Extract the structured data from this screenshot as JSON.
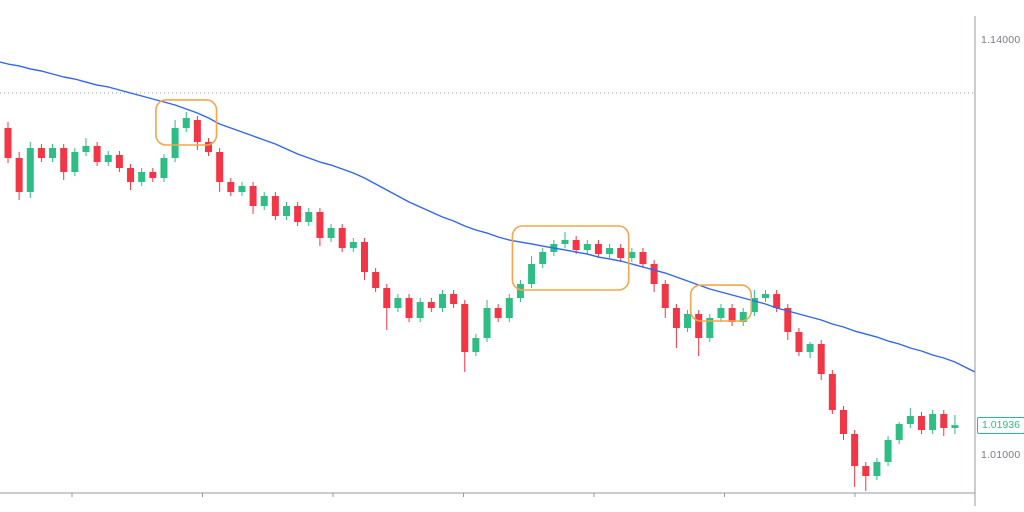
{
  "chart_data": {
    "type": "candlestick",
    "title": "",
    "y_axis": {
      "ylim": [
        0.9981,
        1.15253
      ],
      "labels": [
        {
          "text": "1.14000",
          "value": 1.14
        },
        {
          "text": "1.01000",
          "value": 1.01
        }
      ],
      "current_price": {
        "text": "1.01936",
        "value": 1.01936
      }
    },
    "x_axis": {
      "labels": [],
      "ticks_visible": true
    },
    "levels": {
      "dotted_line_price": 1.1234
    },
    "series": {
      "candles_ohlc": [
        [
          1.11243,
          1.11431,
          1.10147,
          1.10304
        ],
        [
          1.10304,
          1.10492,
          1.08988,
          1.09239
        ],
        [
          1.09239,
          1.10805,
          1.09051,
          1.10617
        ],
        [
          1.10617,
          1.10743,
          1.10178,
          1.10304
        ],
        [
          1.10304,
          1.10743,
          1.10178,
          1.10617
        ],
        [
          1.10617,
          1.10743,
          1.09615,
          1.09865
        ],
        [
          1.09865,
          1.10617,
          1.0974,
          1.10492
        ],
        [
          1.10492,
          1.1093,
          1.10367,
          1.1068
        ],
        [
          1.1068,
          1.10805,
          1.10053,
          1.10178
        ],
        [
          1.10178,
          1.10523,
          1.10053,
          1.10398
        ],
        [
          1.10398,
          1.10523,
          1.09865,
          1.0999
        ],
        [
          1.0999,
          1.10116,
          1.09301,
          1.09552
        ],
        [
          1.09552,
          1.0999,
          1.09427,
          1.09865
        ],
        [
          1.09865,
          1.0999,
          1.09552,
          1.09677
        ],
        [
          1.09677,
          1.10429,
          1.09552,
          1.10304
        ],
        [
          1.10304,
          1.11494,
          1.10178,
          1.11243
        ],
        [
          1.11243,
          1.11745,
          1.11118,
          1.11556
        ],
        [
          1.11494,
          1.1162,
          1.10554,
          1.10805
        ],
        [
          1.10805,
          1.1093,
          1.10367,
          1.10492
        ],
        [
          1.10492,
          1.10617,
          1.09239,
          1.09552
        ],
        [
          1.09552,
          1.09677,
          1.09113,
          1.09239
        ],
        [
          1.09239,
          1.09552,
          1.09113,
          1.09427
        ],
        [
          1.09427,
          1.09552,
          1.08549,
          1.088
        ],
        [
          1.088,
          1.09239,
          1.08675,
          1.09113
        ],
        [
          1.09113,
          1.09239,
          1.08362,
          1.08487
        ],
        [
          1.08487,
          1.08925,
          1.08362,
          1.088
        ],
        [
          1.088,
          1.08925,
          1.08174,
          1.08299
        ],
        [
          1.08299,
          1.08737,
          1.08174,
          1.08612
        ],
        [
          1.08612,
          1.08737,
          1.07547,
          1.07798
        ],
        [
          1.07798,
          1.08237,
          1.07672,
          1.08111
        ],
        [
          1.08111,
          1.08237,
          1.07359,
          1.07484
        ],
        [
          1.07484,
          1.07798,
          1.07359,
          1.07672
        ],
        [
          1.07672,
          1.07798,
          1.06482,
          1.06733
        ],
        [
          1.06733,
          1.06858,
          1.06106,
          1.06231
        ],
        [
          1.06231,
          1.06357,
          1.04916,
          1.05605
        ],
        [
          1.05605,
          1.06043,
          1.0548,
          1.05918
        ],
        [
          1.05918,
          1.06043,
          1.05166,
          1.05292
        ],
        [
          1.05292,
          1.05918,
          1.05166,
          1.05793
        ],
        [
          1.05793,
          1.05918,
          1.0548,
          1.05605
        ],
        [
          1.05605,
          1.06169,
          1.0548,
          1.06043
        ],
        [
          1.06043,
          1.06169,
          1.05605,
          1.0573
        ],
        [
          1.0573,
          1.05856,
          1.036,
          1.04227
        ],
        [
          1.04227,
          1.0479,
          1.04101,
          1.04665
        ],
        [
          1.04665,
          1.05856,
          1.0454,
          1.05605
        ],
        [
          1.05605,
          1.0573,
          1.05166,
          1.05292
        ],
        [
          1.05292,
          1.06043,
          1.05166,
          1.05918
        ],
        [
          1.05918,
          1.06482,
          1.05793,
          1.06357
        ],
        [
          1.06357,
          1.07234,
          1.06231,
          1.06983
        ],
        [
          1.06983,
          1.07484,
          1.06858,
          1.07359
        ],
        [
          1.07359,
          1.07735,
          1.07234,
          1.0761
        ],
        [
          1.0761,
          1.07986,
          1.07484,
          1.07735
        ],
        [
          1.07735,
          1.0786,
          1.07296,
          1.07422
        ],
        [
          1.07422,
          1.07735,
          1.07296,
          1.0761
        ],
        [
          1.0761,
          1.07735,
          1.07171,
          1.07296
        ],
        [
          1.07296,
          1.0761,
          1.07171,
          1.07484
        ],
        [
          1.07484,
          1.0761,
          1.07046,
          1.07171
        ],
        [
          1.07171,
          1.07484,
          1.07046,
          1.07359
        ],
        [
          1.07359,
          1.07484,
          1.06858,
          1.06983
        ],
        [
          1.06983,
          1.07109,
          1.06106,
          1.06357
        ],
        [
          1.06357,
          1.06482,
          1.05292,
          1.05605
        ],
        [
          1.05605,
          1.0573,
          1.04352,
          1.04978
        ],
        [
          1.04978,
          1.05542,
          1.04853,
          1.05417
        ],
        [
          1.05417,
          1.05542,
          1.04101,
          1.04665
        ],
        [
          1.04665,
          1.05417,
          1.0454,
          1.05292
        ],
        [
          1.05292,
          1.0573,
          1.05166,
          1.05605
        ],
        [
          1.05605,
          1.0573,
          1.05041,
          1.05166
        ],
        [
          1.05166,
          1.05605,
          1.05041,
          1.0548
        ],
        [
          1.0548,
          1.06169,
          1.05354,
          1.05918
        ],
        [
          1.05918,
          1.06169,
          1.05793,
          1.06043
        ],
        [
          1.06043,
          1.06169,
          1.0548,
          1.05605
        ],
        [
          1.05605,
          1.0573,
          1.04602,
          1.04853
        ],
        [
          1.04853,
          1.04978,
          1.04101,
          1.04227
        ],
        [
          1.04227,
          1.0454,
          1.04039,
          1.04477
        ],
        [
          1.04477,
          1.04602,
          1.03349,
          1.03537
        ],
        [
          1.03537,
          1.03662,
          1.02284,
          1.0241
        ],
        [
          1.0241,
          1.02535,
          1.0147,
          1.01658
        ],
        [
          1.01658,
          1.01783,
          0.99998,
          1.00655
        ],
        [
          1.00655,
          1.00781,
          0.99873,
          1.00342
        ],
        [
          1.00342,
          1.00906,
          1.00217,
          1.00781
        ],
        [
          1.00781,
          1.01595,
          1.00655,
          1.0147
        ],
        [
          1.0147,
          1.02034,
          1.01345,
          1.01971
        ],
        [
          1.01971,
          1.02472,
          1.01846,
          1.02222
        ],
        [
          1.02222,
          1.02347,
          1.01658,
          1.01783
        ],
        [
          1.01783,
          1.0241,
          1.01658,
          1.02284
        ],
        [
          1.02284,
          1.0241,
          1.01595,
          1.01846
        ],
        [
          1.01846,
          1.02253,
          1.01658,
          1.01936
        ]
      ],
      "ma": {
        "name": "moving-average-line",
        "left_edge": 1.13311,
        "right_edge": 1.036,
        "values": [
          1.13248,
          1.13186,
          1.13092,
          1.13029,
          1.12935,
          1.12841,
          1.12778,
          1.12684,
          1.1259,
          1.12528,
          1.12434,
          1.1234,
          1.12246,
          1.12152,
          1.12058,
          1.11964,
          1.11839,
          1.11713,
          1.11557,
          1.11369,
          1.11243,
          1.11118,
          1.10993,
          1.10868,
          1.10742,
          1.10586,
          1.10429,
          1.10304,
          1.10178,
          1.10084,
          1.09959,
          1.09834,
          1.09677,
          1.09489,
          1.09301,
          1.09113,
          1.08925,
          1.08769,
          1.08612,
          1.08455,
          1.0833,
          1.08174,
          1.08048,
          1.07954,
          1.07829,
          1.07735,
          1.07672,
          1.0761,
          1.07547,
          1.07484,
          1.07422,
          1.07359,
          1.07296,
          1.07202,
          1.0714,
          1.07077,
          1.06983,
          1.06889,
          1.06795,
          1.06701,
          1.06576,
          1.06451,
          1.06325,
          1.062,
          1.06106,
          1.06012,
          1.05918,
          1.05824,
          1.0573,
          1.05605,
          1.05511,
          1.05417,
          1.05323,
          1.05229,
          1.05104,
          1.0501,
          1.04884,
          1.0479,
          1.04696,
          1.04571,
          1.04477,
          1.04352,
          1.04258,
          1.04133,
          1.04039,
          1.03913
        ]
      }
    },
    "annotations": [
      {
        "shape": "rounded-rect",
        "from": 14,
        "to": 18,
        "top": 1.12121,
        "bottom": 1.10711
      },
      {
        "shape": "rounded-rect",
        "from": 46,
        "to": 55,
        "top": 1.08174,
        "bottom": 1.06169
      },
      {
        "shape": "rounded-rect",
        "from": 62,
        "to": 66,
        "top": 1.06325,
        "bottom": 1.05198
      }
    ],
    "colors": {
      "up": "#2ebd85",
      "down": "#f23645",
      "ma": "#2e66f5",
      "annotation": "#f2a64e",
      "axis_text": "#787b86",
      "axis_line": "#9598a1",
      "dotted": "#9598a1",
      "background": "#ffffff",
      "badge_text": "#2ebd85",
      "badge_border": "#2ebd85"
    }
  }
}
